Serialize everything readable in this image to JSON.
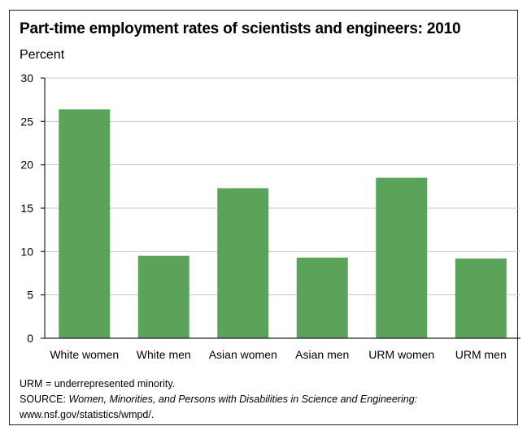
{
  "chart_data": {
    "type": "bar",
    "title": "Part-time employment rates of scientists and engineers: 2010",
    "ylabel": "Percent",
    "xlabel": "",
    "categories": [
      "White women",
      "White men",
      "Asian women",
      "Asian men",
      "URM women",
      "URM men"
    ],
    "values": [
      26.4,
      9.5,
      17.3,
      9.3,
      18.5,
      9.2
    ],
    "ylim": [
      0,
      30
    ],
    "yticks": [
      0,
      5,
      10,
      15,
      20,
      25,
      30
    ],
    "grid": true,
    "bar_color": "#5ba35b"
  },
  "notes": {
    "urm": "URM = underrepresented minority.",
    "source_prefix": "SOURCE: ",
    "source_title": "Women, Minorities, and Persons with Disabilities in Science and Engineering:",
    "source_url": "www.nsf.gov/statistics/wmpd/."
  }
}
